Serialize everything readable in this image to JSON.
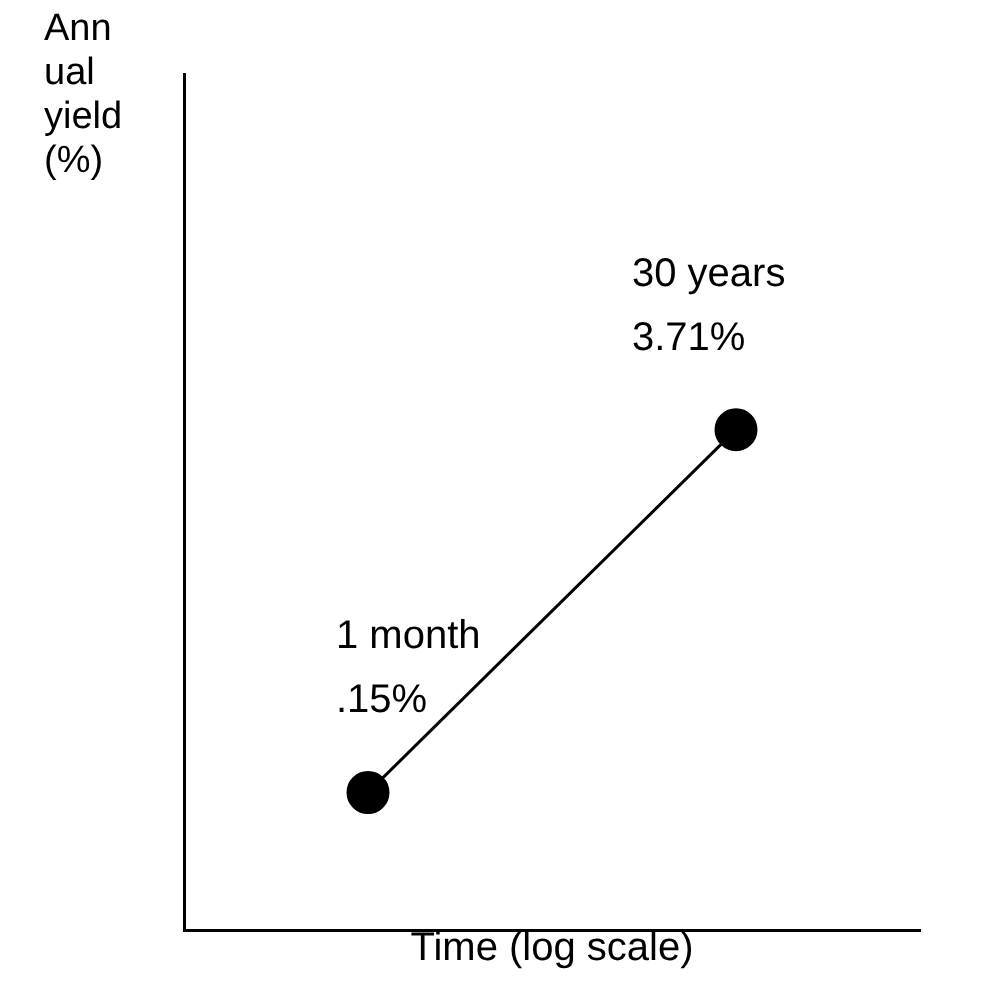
{
  "chart_data": {
    "type": "line",
    "xlabel": "Time (log scale)",
    "ylabel": "Annual yield (%)",
    "categories": [
      "1 month",
      "30 years"
    ],
    "values": [
      0.15,
      3.71
    ],
    "value_labels": [
      ".15%",
      "3.71%"
    ],
    "color": "#000000",
    "ylim": [
      -1.2,
      7.2
    ],
    "tick_labels": false,
    "grid": false,
    "legend": false,
    "marker": "circle",
    "line_style": "solid"
  }
}
